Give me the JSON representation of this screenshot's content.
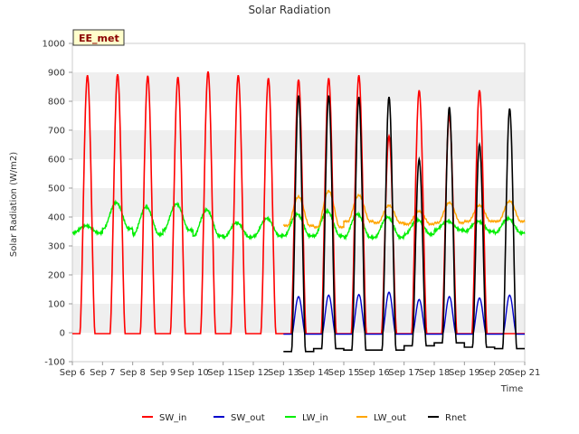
{
  "chart_data": {
    "type": "line",
    "title": "Solar Radiation",
    "xlabel": "Time",
    "ylabel": "Solar Radiation (W/m2)",
    "badge": "EE_met",
    "x_ticks": [
      "Sep 6",
      "Sep 7",
      "Sep 8",
      "Sep 9",
      "Sep 10",
      "Sep 11",
      "Sep 12",
      "Sep 13",
      "Sep 14",
      "Sep 15",
      "Sep 16",
      "Sep 17",
      "Sep 18",
      "Sep 19",
      "Sep 20",
      "Sep 21"
    ],
    "xlim": [
      "2024-09-06",
      "2024-09-21"
    ],
    "ylim": [
      -100,
      1000
    ],
    "y_ticks": [
      -100,
      0,
      100,
      200,
      300,
      400,
      500,
      600,
      700,
      800,
      900,
      1000
    ],
    "grid": "horizontal bands",
    "legend_position": "bottom",
    "colors": {
      "SW_in": "#ff0000",
      "SW_out": "#0000cc",
      "LW_in": "#00ee00",
      "LW_out": "#ffa500",
      "Rnet": "#000000",
      "band": "#efefef",
      "badge_bg": "#ffffcc"
    },
    "series": [
      {
        "name": "SW_in",
        "color": "#ff0000",
        "x": [
          "Sep 6.5",
          "Sep 7.5",
          "Sep 8.5",
          "Sep 9.5",
          "Sep 10.5",
          "Sep 11.5",
          "Sep 12.5",
          "Sep 13.5",
          "Sep 14.5",
          "Sep 15.5",
          "Sep 16.5",
          "Sep 17.5",
          "Sep 18.5",
          "Sep 19.5",
          "Sep 20.5"
        ],
        "daily_peak": [
          890,
          893,
          888,
          884,
          903,
          890,
          880,
          875,
          880,
          890,
          680,
          838,
          750,
          838,
          0
        ],
        "night_value": -3
      },
      {
        "name": "SW_out",
        "color": "#0000cc",
        "daily_peak": [
          125,
          130,
          132,
          140,
          115,
          125,
          120,
          130
        ],
        "days": [
          "Sep 13",
          "Sep 14",
          "Sep 15",
          "Sep 16",
          "Sep 17",
          "Sep 18",
          "Sep 19",
          "Sep 20"
        ],
        "night_value": -5
      },
      {
        "name": "LW_in",
        "color": "#00ee00",
        "days": [
          "Sep 6",
          "Sep 7",
          "Sep 8",
          "Sep 9",
          "Sep 10",
          "Sep 11",
          "Sep 12",
          "Sep 13",
          "Sep 14",
          "Sep 15",
          "Sep 16",
          "Sep 17",
          "Sep 18",
          "Sep 19",
          "Sep 20"
        ],
        "daily_min": [
          345,
          360,
          340,
          355,
          335,
          330,
          335,
          335,
          335,
          330,
          330,
          340,
          355,
          350,
          345
        ],
        "daily_max": [
          370,
          450,
          435,
          445,
          425,
          380,
          395,
          410,
          420,
          410,
          400,
          390,
          385,
          385,
          395
        ]
      },
      {
        "name": "LW_out",
        "color": "#ffa500",
        "days": [
          "Sep 13",
          "Sep 14",
          "Sep 15",
          "Sep 16",
          "Sep 17",
          "Sep 18",
          "Sep 19",
          "Sep 20"
        ],
        "daily_min": [
          370,
          365,
          385,
          380,
          375,
          380,
          385,
          385
        ],
        "daily_max": [
          470,
          490,
          475,
          440,
          420,
          450,
          440,
          455
        ]
      },
      {
        "name": "Rnet",
        "color": "#000000",
        "days": [
          "Sep 13",
          "Sep 14",
          "Sep 15",
          "Sep 16",
          "Sep 17",
          "Sep 18",
          "Sep 19",
          "Sep 20"
        ],
        "daily_peak": [
          820,
          820,
          815,
          815,
          600,
          780,
          650,
          775
        ],
        "daily_min": [
          -65,
          -55,
          -60,
          -60,
          -45,
          -35,
          -50,
          -55
        ]
      }
    ]
  }
}
